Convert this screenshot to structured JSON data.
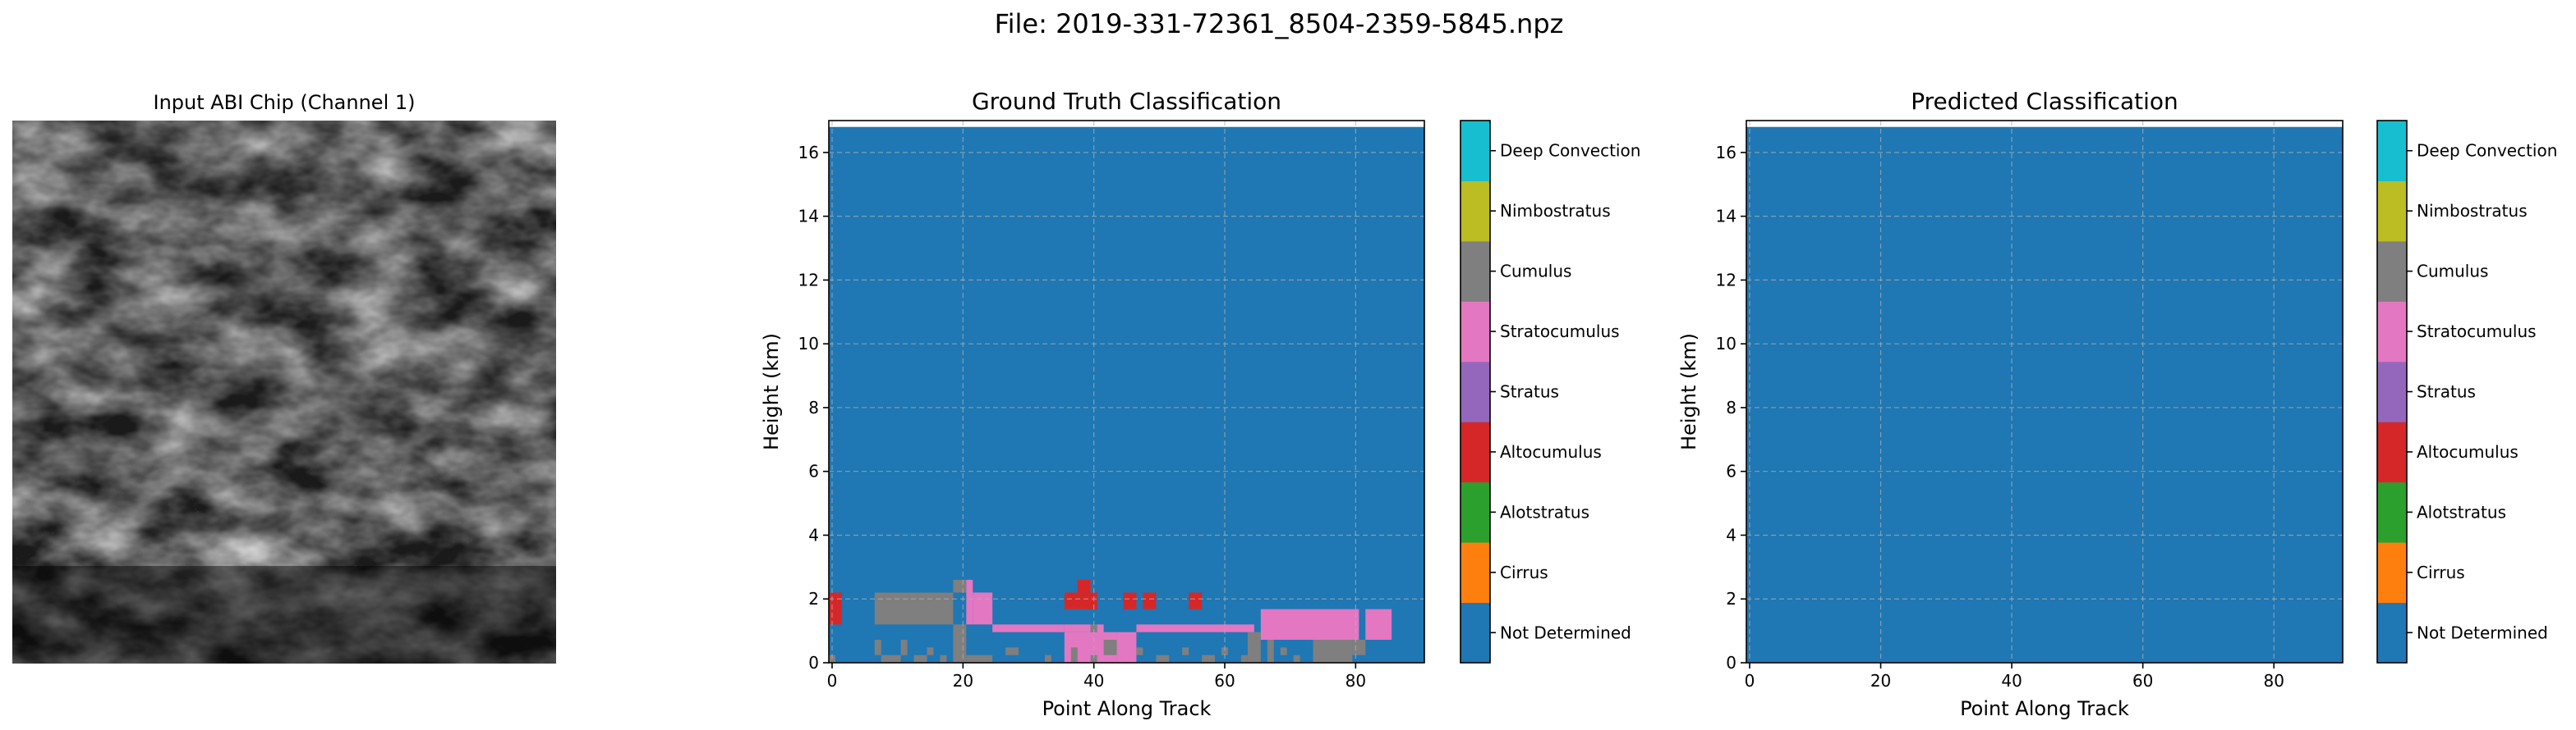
{
  "figure": {
    "suptitle": "File: 2019-331-72361_8504-2359-5845.npz"
  },
  "chip": {
    "title": "Input ABI Chip (Channel 1)"
  },
  "colors": {
    "Not Determined": "#1f77b4",
    "Cirrus": "#ff7f0e",
    "Alotstratus": "#2ca02c",
    "Altocumulus": "#d62728",
    "Stratus": "#9467bd",
    "Stratocumulus": "#e377c2",
    "Cumulus": "#7f7f7f",
    "Nimbostratus": "#bcbd22",
    "Deep Convection": "#17becf"
  },
  "chart_data": [
    {
      "type": "heatmap",
      "title": "Ground Truth Classification",
      "xlabel": "Point Along Track",
      "ylabel": "Height (km)",
      "xlim": [
        -0.5,
        90.5
      ],
      "ylim": [
        0,
        17
      ],
      "xticks": [
        0,
        20,
        40,
        60,
        80
      ],
      "yticks": [
        0,
        2,
        4,
        6,
        8,
        10,
        12,
        14,
        16
      ],
      "grid": true,
      "background_class": "Not Determined",
      "cell_height_km": 0.24,
      "data_top_km": 16.8,
      "colorbar": [
        "Not Determined",
        "Cirrus",
        "Alotstratus",
        "Altocumulus",
        "Stratus",
        "Stratocumulus",
        "Cumulus",
        "Nimbostratus",
        "Deep Convection"
      ],
      "cells": [
        {
          "class": "Altocumulus",
          "x": [
            0,
            2
          ],
          "y": [
            1.2,
            2.2
          ]
        },
        {
          "class": "Cumulus",
          "x": [
            0,
            1
          ],
          "y": [
            0,
            0.24
          ]
        },
        {
          "class": "Cumulus",
          "x": [
            7,
            19
          ],
          "y": [
            1.2,
            2.2
          ]
        },
        {
          "class": "Cumulus",
          "x": [
            19,
            21
          ],
          "y": [
            2.2,
            2.6
          ]
        },
        {
          "class": "Cumulus",
          "x": [
            19,
            21
          ],
          "y": [
            0,
            1.2
          ]
        },
        {
          "class": "Cumulus",
          "x": [
            7,
            8
          ],
          "y": [
            0.24,
            0.72
          ]
        },
        {
          "class": "Cumulus",
          "x": [
            8,
            11
          ],
          "y": [
            0,
            0.24
          ]
        },
        {
          "class": "Cumulus",
          "x": [
            11,
            12
          ],
          "y": [
            0.24,
            0.72
          ]
        },
        {
          "class": "Cumulus",
          "x": [
            13,
            15
          ],
          "y": [
            0,
            0.24
          ]
        },
        {
          "class": "Cumulus",
          "x": [
            15,
            16
          ],
          "y": [
            0.24,
            0.48
          ]
        },
        {
          "class": "Cumulus",
          "x": [
            17,
            18
          ],
          "y": [
            0,
            0.24
          ]
        },
        {
          "class": "Cumulus",
          "x": [
            21,
            25
          ],
          "y": [
            0,
            0.24
          ]
        },
        {
          "class": "Stratocumulus",
          "x": [
            21,
            22
          ],
          "y": [
            1.2,
            2.6
          ]
        },
        {
          "class": "Stratocumulus",
          "x": [
            22,
            25
          ],
          "y": [
            1.2,
            2.2
          ]
        },
        {
          "class": "Stratocumulus",
          "x": [
            25,
            36
          ],
          "y": [
            0.96,
            1.2
          ]
        },
        {
          "class": "Stratocumulus",
          "x": [
            36,
            40
          ],
          "y": [
            0.96,
            1.2
          ]
        },
        {
          "class": "Cumulus",
          "x": [
            27,
            29
          ],
          "y": [
            0.24,
            0.48
          ]
        },
        {
          "class": "Cumulus",
          "x": [
            33,
            34
          ],
          "y": [
            0,
            0.24
          ]
        },
        {
          "class": "Stratocumulus",
          "x": [
            36,
            44
          ],
          "y": [
            0,
            0.96
          ]
        },
        {
          "class": "Cumulus",
          "x": [
            37,
            38
          ],
          "y": [
            0,
            0.48
          ]
        },
        {
          "class": "Cumulus",
          "x": [
            40,
            41
          ],
          "y": [
            0,
            0.24
          ]
        },
        {
          "class": "Cumulus",
          "x": [
            42,
            44
          ],
          "y": [
            0.24,
            0.72
          ]
        },
        {
          "class": "Cumulus",
          "x": [
            40,
            41
          ],
          "y": [
            0.96,
            1.2
          ]
        },
        {
          "class": "Altocumulus",
          "x": [
            36,
            41
          ],
          "y": [
            1.68,
            2.2
          ]
        },
        {
          "class": "Altocumulus",
          "x": [
            38,
            40
          ],
          "y": [
            2.2,
            2.6
          ]
        },
        {
          "class": "Altocumulus",
          "x": [
            45,
            47
          ],
          "y": [
            1.68,
            2.2
          ]
        },
        {
          "class": "Altocumulus",
          "x": [
            48,
            50
          ],
          "y": [
            1.68,
            2.2
          ]
        },
        {
          "class": "Altocumulus",
          "x": [
            55,
            57
          ],
          "y": [
            1.68,
            2.2
          ]
        },
        {
          "class": "Stratocumulus",
          "x": [
            41,
            42
          ],
          "y": [
            0.72,
            1.2
          ]
        },
        {
          "class": "Stratocumulus",
          "x": [
            47,
            65
          ],
          "y": [
            0.96,
            1.2
          ]
        },
        {
          "class": "Stratocumulus",
          "x": [
            44,
            47
          ],
          "y": [
            0,
            0.96
          ]
        },
        {
          "class": "Cumulus",
          "x": [
            47,
            48
          ],
          "y": [
            0.24,
            0.48
          ]
        },
        {
          "class": "Cumulus",
          "x": [
            50,
            52
          ],
          "y": [
            0,
            0.24
          ]
        },
        {
          "class": "Cumulus",
          "x": [
            54,
            55
          ],
          "y": [
            0.24,
            0.48
          ]
        },
        {
          "class": "Cumulus",
          "x": [
            57,
            59
          ],
          "y": [
            0,
            0.24
          ]
        },
        {
          "class": "Cumulus",
          "x": [
            60,
            61
          ],
          "y": [
            0.24,
            0.48
          ]
        },
        {
          "class": "Cumulus",
          "x": [
            63,
            64
          ],
          "y": [
            0,
            0.24
          ]
        },
        {
          "class": "Cumulus",
          "x": [
            64,
            66
          ],
          "y": [
            0,
            0.96
          ]
        },
        {
          "class": "Cumulus",
          "x": [
            67,
            68
          ],
          "y": [
            0,
            0.72
          ]
        },
        {
          "class": "Cumulus",
          "x": [
            69,
            70
          ],
          "y": [
            0.24,
            0.48
          ]
        },
        {
          "class": "Cumulus",
          "x": [
            71,
            72
          ],
          "y": [
            0,
            0.24
          ]
        },
        {
          "class": "Cumulus",
          "x": [
            74,
            80
          ],
          "y": [
            0,
            0.72
          ]
        },
        {
          "class": "Cumulus",
          "x": [
            80,
            82
          ],
          "y": [
            0.24,
            0.72
          ]
        },
        {
          "class": "Stratocumulus",
          "x": [
            66,
            81
          ],
          "y": [
            0.72,
            1.68
          ]
        },
        {
          "class": "Stratocumulus",
          "x": [
            82,
            86
          ],
          "y": [
            0.72,
            1.68
          ]
        }
      ]
    },
    {
      "type": "heatmap",
      "title": "Predicted Classification",
      "xlabel": "Point Along Track",
      "ylabel": "Height (km)",
      "xlim": [
        -0.5,
        90.5
      ],
      "ylim": [
        0,
        17
      ],
      "xticks": [
        0,
        20,
        40,
        60,
        80
      ],
      "yticks": [
        0,
        2,
        4,
        6,
        8,
        10,
        12,
        14,
        16
      ],
      "grid": true,
      "background_class": "Not Determined",
      "data_top_km": 16.8,
      "colorbar": [
        "Not Determined",
        "Cirrus",
        "Alotstratus",
        "Altocumulus",
        "Stratus",
        "Stratocumulus",
        "Cumulus",
        "Nimbostratus",
        "Deep Convection"
      ],
      "cells": []
    }
  ]
}
